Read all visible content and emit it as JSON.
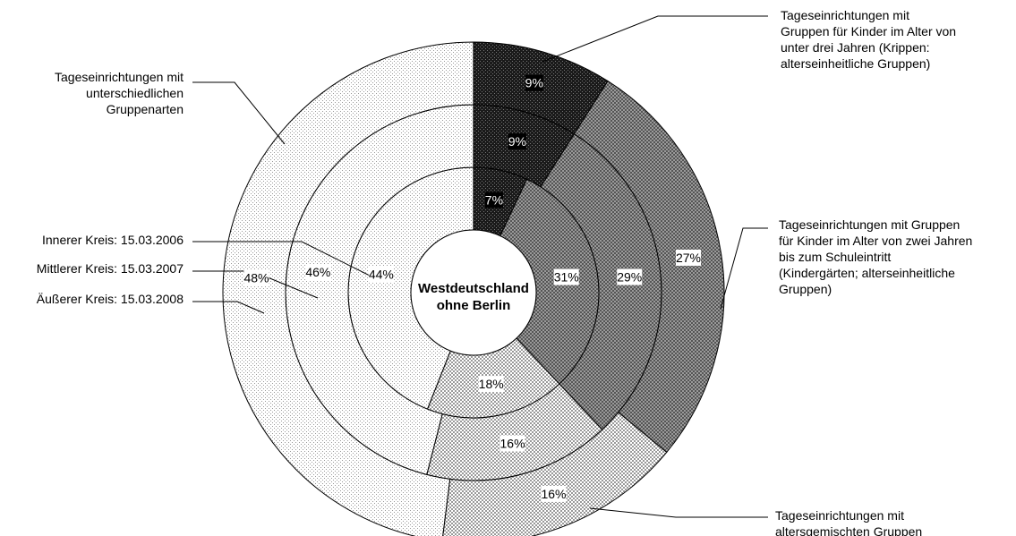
{
  "chart_data": {
    "type": "donut",
    "center_label": [
      "Westdeutschland",
      "ohne Berlin"
    ],
    "categories": [
      "Tageseinrichtungen mit Gruppen für Kinder im Alter von unter drei Jahren (Krippen: alterseinheitliche Gruppen)",
      "Tageseinrichtungen mit Gruppen für Kinder im Alter von zwei Jahren bis zum Schuleintritt (Kindergärten; alterseinheitliche Gruppen)",
      "Tageseinrichtungen mit altersgemischten Gruppen",
      "Tageseinrichtungen mit unterschiedlichen Gruppenarten"
    ],
    "category_label_lines": [
      [
        "Tageseinrichtungen mit",
        "Gruppen für Kinder im Alter von",
        "unter drei Jahren (Krippen:",
        "alterseinheitliche Gruppen)"
      ],
      [
        "Tageseinrichtungen mit Gruppen",
        "für Kinder im Alter von zwei Jahren",
        "bis zum Schuleintritt",
        "(Kindergärten; alterseinheitliche",
        "Gruppen)"
      ],
      [
        "Tageseinrichtungen mit",
        "altersgemischten Gruppen"
      ],
      [
        "Tageseinrichtungen mit",
        "unterschiedlichen",
        "Gruppenarten"
      ]
    ],
    "series": [
      {
        "name": "Innerer Kreis: 15.03.2006",
        "values": [
          7,
          31,
          18,
          44
        ],
        "labels": [
          "7%",
          "31%",
          "18%",
          "44%"
        ]
      },
      {
        "name": "Mittlerer Kreis: 15.03.2007",
        "values": [
          9,
          29,
          16,
          46
        ],
        "labels": [
          "9%",
          "29%",
          "16%",
          "46%"
        ]
      },
      {
        "name": "Äußerer Kreis: 15.03.2008",
        "values": [
          9,
          27,
          16,
          48
        ],
        "labels": [
          "9%",
          "27%",
          "16%",
          "48%"
        ]
      }
    ],
    "colors": [
      "#222222",
      "#8a8a8a",
      "#bdbdbd",
      "#ebebeb"
    ]
  }
}
